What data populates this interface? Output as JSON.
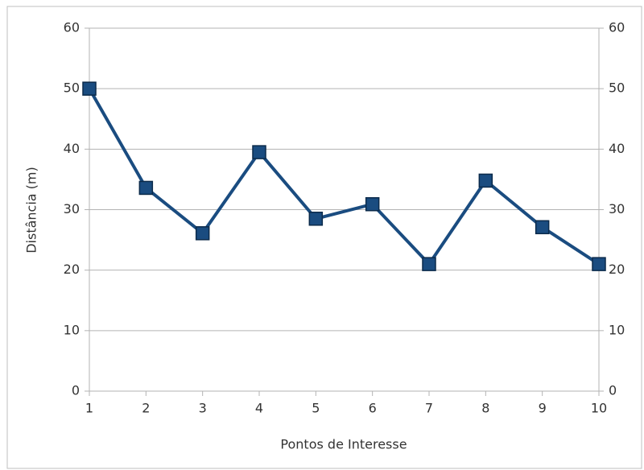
{
  "chart_data": {
    "type": "line",
    "x_label": "Pontos de Interesse",
    "y_label": "Distância (m)",
    "x": [
      1,
      2,
      3,
      4,
      5,
      6,
      7,
      8,
      9,
      10
    ],
    "series": [
      {
        "color": "#1a4c80",
        "values": [
          50,
          33.6,
          26.1,
          39.5,
          28.5,
          30.9,
          21.0,
          34.8,
          27.1,
          21.0
        ]
      }
    ],
    "xlim": [
      1,
      10
    ],
    "xticks": [
      1,
      2,
      3,
      4,
      5,
      6,
      7,
      8,
      9,
      10
    ],
    "ylim": [
      0,
      60
    ],
    "yticks": [
      0,
      10,
      20,
      30,
      40,
      50,
      60
    ],
    "y2lim": [
      0,
      60
    ],
    "y2ticks": [
      0,
      10,
      20,
      30,
      40,
      50,
      60
    ],
    "grid": true
  }
}
